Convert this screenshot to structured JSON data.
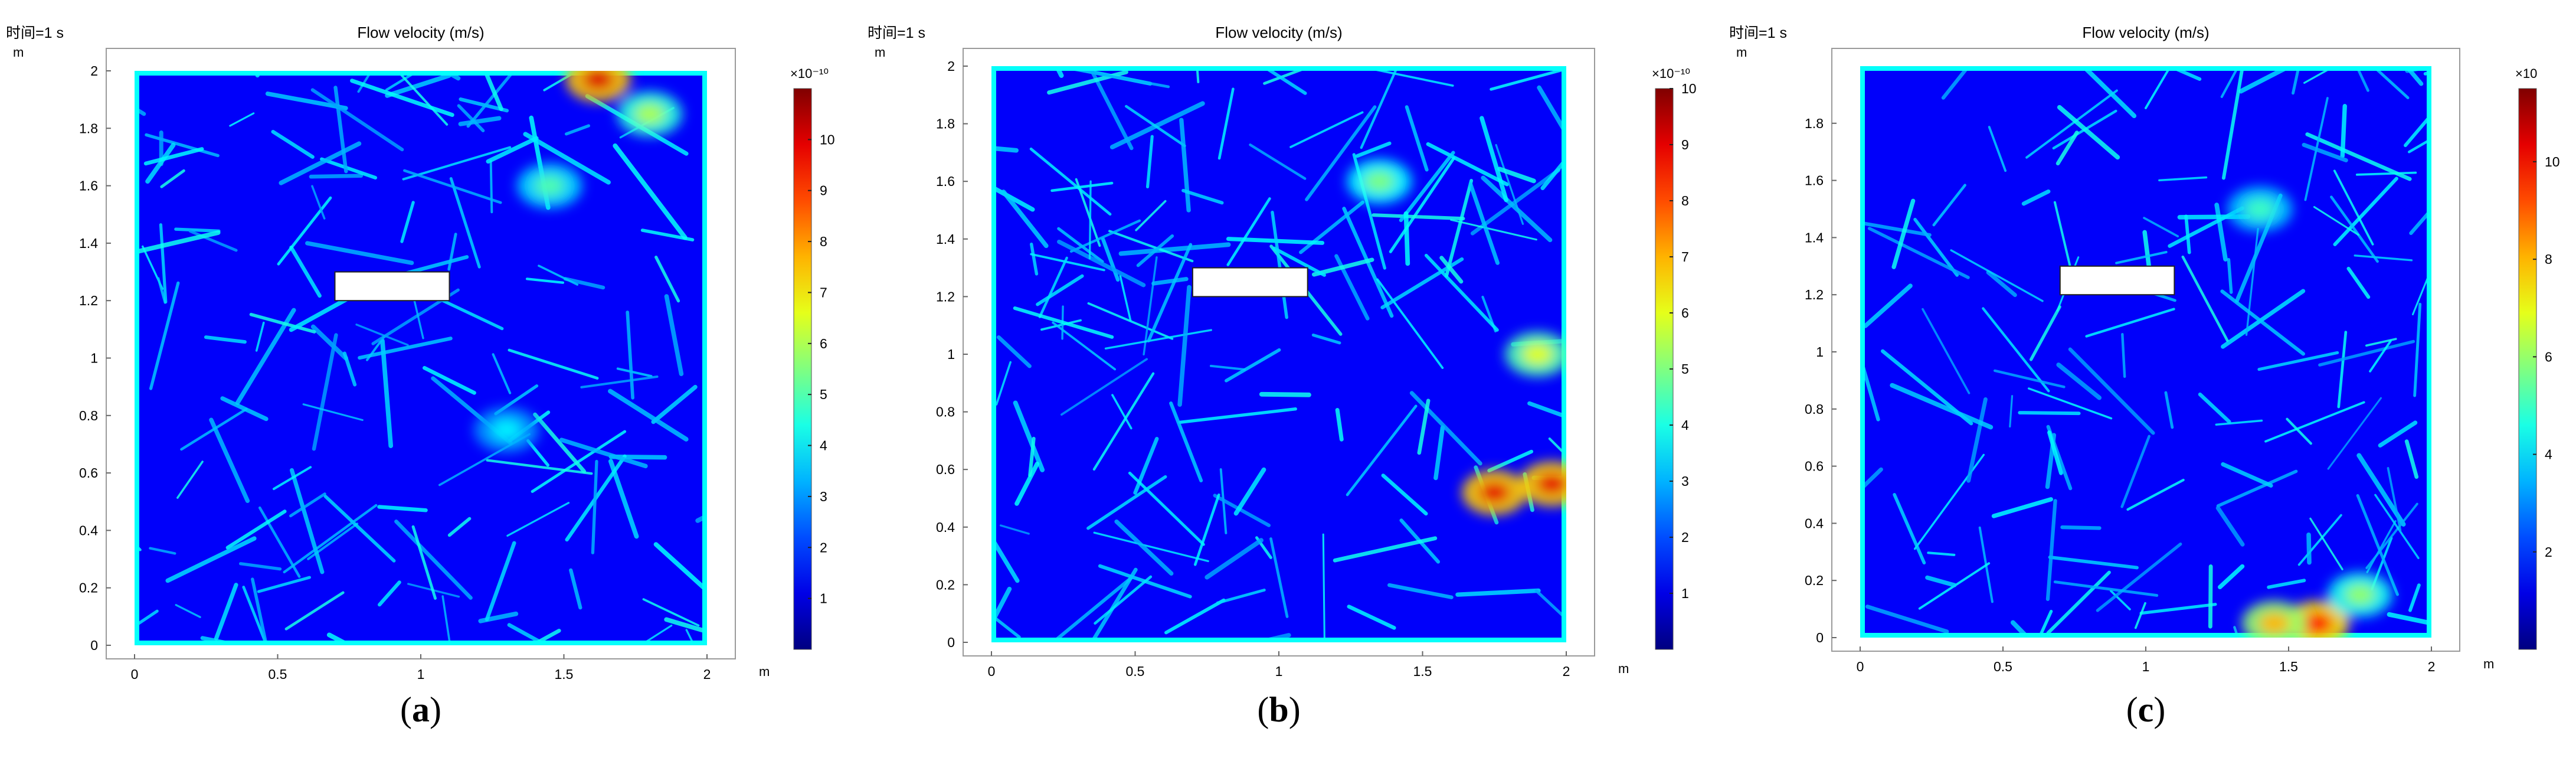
{
  "chart_data": [
    {
      "type": "heatmap",
      "panel_label": "a",
      "time_label": "时间=1 s",
      "title": "Flow velocity (m/s)",
      "x_unit": "m",
      "y_unit": "m",
      "xlim": [
        0,
        2
      ],
      "ylim": [
        0,
        2
      ],
      "x_ticks": [
        "0",
        "0.5",
        "1",
        "1.5",
        "2"
      ],
      "y_ticks": [
        "0",
        "0.2",
        "0.4",
        "0.6",
        "0.8",
        "1",
        "1.2",
        "1.4",
        "1.6",
        "1.8",
        "2"
      ],
      "obstacle": {
        "x": [
          0.7,
          1.1
        ],
        "y": [
          1.2,
          1.3
        ]
      },
      "colorbar": {
        "multiplier": "×10⁻¹⁰",
        "min": 0,
        "max": 11,
        "ticks": [
          "1",
          "2",
          "3",
          "4",
          "5",
          "6",
          "7",
          "8",
          "9",
          "10"
        ]
      },
      "colormap": "jet",
      "hotspots": [
        {
          "x": 1.62,
          "y": 1.97,
          "level": 10
        },
        {
          "x": 1.45,
          "y": 1.6,
          "level": 5
        },
        {
          "x": 1.3,
          "y": 0.75,
          "level": 4
        },
        {
          "x": 1.8,
          "y": 1.85,
          "level": 6
        }
      ]
    },
    {
      "type": "heatmap",
      "panel_label": "b",
      "time_label": "时间=1 s",
      "title": "Flow velocity (m/s)",
      "x_unit": "m",
      "y_unit": "m",
      "xlim": [
        0,
        2
      ],
      "ylim": [
        0,
        2
      ],
      "x_ticks": [
        "0",
        "0.5",
        "1",
        "1.5",
        "2"
      ],
      "y_ticks": [
        "0",
        "0.2",
        "0.4",
        "0.6",
        "0.8",
        "1",
        "1.2",
        "1.4",
        "1.6",
        "1.8",
        "2"
      ],
      "obstacle": {
        "x": [
          0.7,
          1.1
        ],
        "y": [
          1.2,
          1.3
        ]
      },
      "colorbar": {
        "multiplier": "×10⁻¹⁰",
        "min": 0,
        "max": 10,
        "ticks": [
          "1",
          "2",
          "3",
          "4",
          "5",
          "6",
          "7",
          "8",
          "9",
          "10"
        ]
      },
      "colormap": "jet",
      "hotspots": [
        {
          "x": 1.75,
          "y": 0.52,
          "level": 9
        },
        {
          "x": 1.95,
          "y": 0.55,
          "level": 9
        },
        {
          "x": 1.9,
          "y": 1.0,
          "level": 6
        },
        {
          "x": 1.35,
          "y": 1.6,
          "level": 5
        }
      ]
    },
    {
      "type": "heatmap",
      "panel_label": "c",
      "time_label": "时间=1 s",
      "title": "Flow velocity (m/s)",
      "x_unit": "m",
      "y_unit": "m",
      "xlim": [
        0,
        2
      ],
      "ylim": [
        0,
        2
      ],
      "x_ticks": [
        "0",
        "0.5",
        "1",
        "1.5",
        "2"
      ],
      "y_ticks": [
        "0",
        "0.2",
        "0.4",
        "0.6",
        "0.8",
        "1",
        "1.2",
        "1.4",
        "1.6",
        "1.8"
      ],
      "obstacle": {
        "x": [
          0.7,
          1.1
        ],
        "y": [
          1.2,
          1.3
        ]
      },
      "colorbar": {
        "multiplier": "×10",
        "min": 0,
        "max": 11.5,
        "ticks": [
          "2",
          "4",
          "6",
          "8",
          "10"
        ]
      },
      "colormap": "jet",
      "hotspots": [
        {
          "x": 1.6,
          "y": 0.05,
          "level": 10
        },
        {
          "x": 1.45,
          "y": 0.05,
          "level": 8
        },
        {
          "x": 1.75,
          "y": 0.15,
          "level": 6
        },
        {
          "x": 1.4,
          "y": 1.5,
          "level": 5
        }
      ]
    }
  ]
}
